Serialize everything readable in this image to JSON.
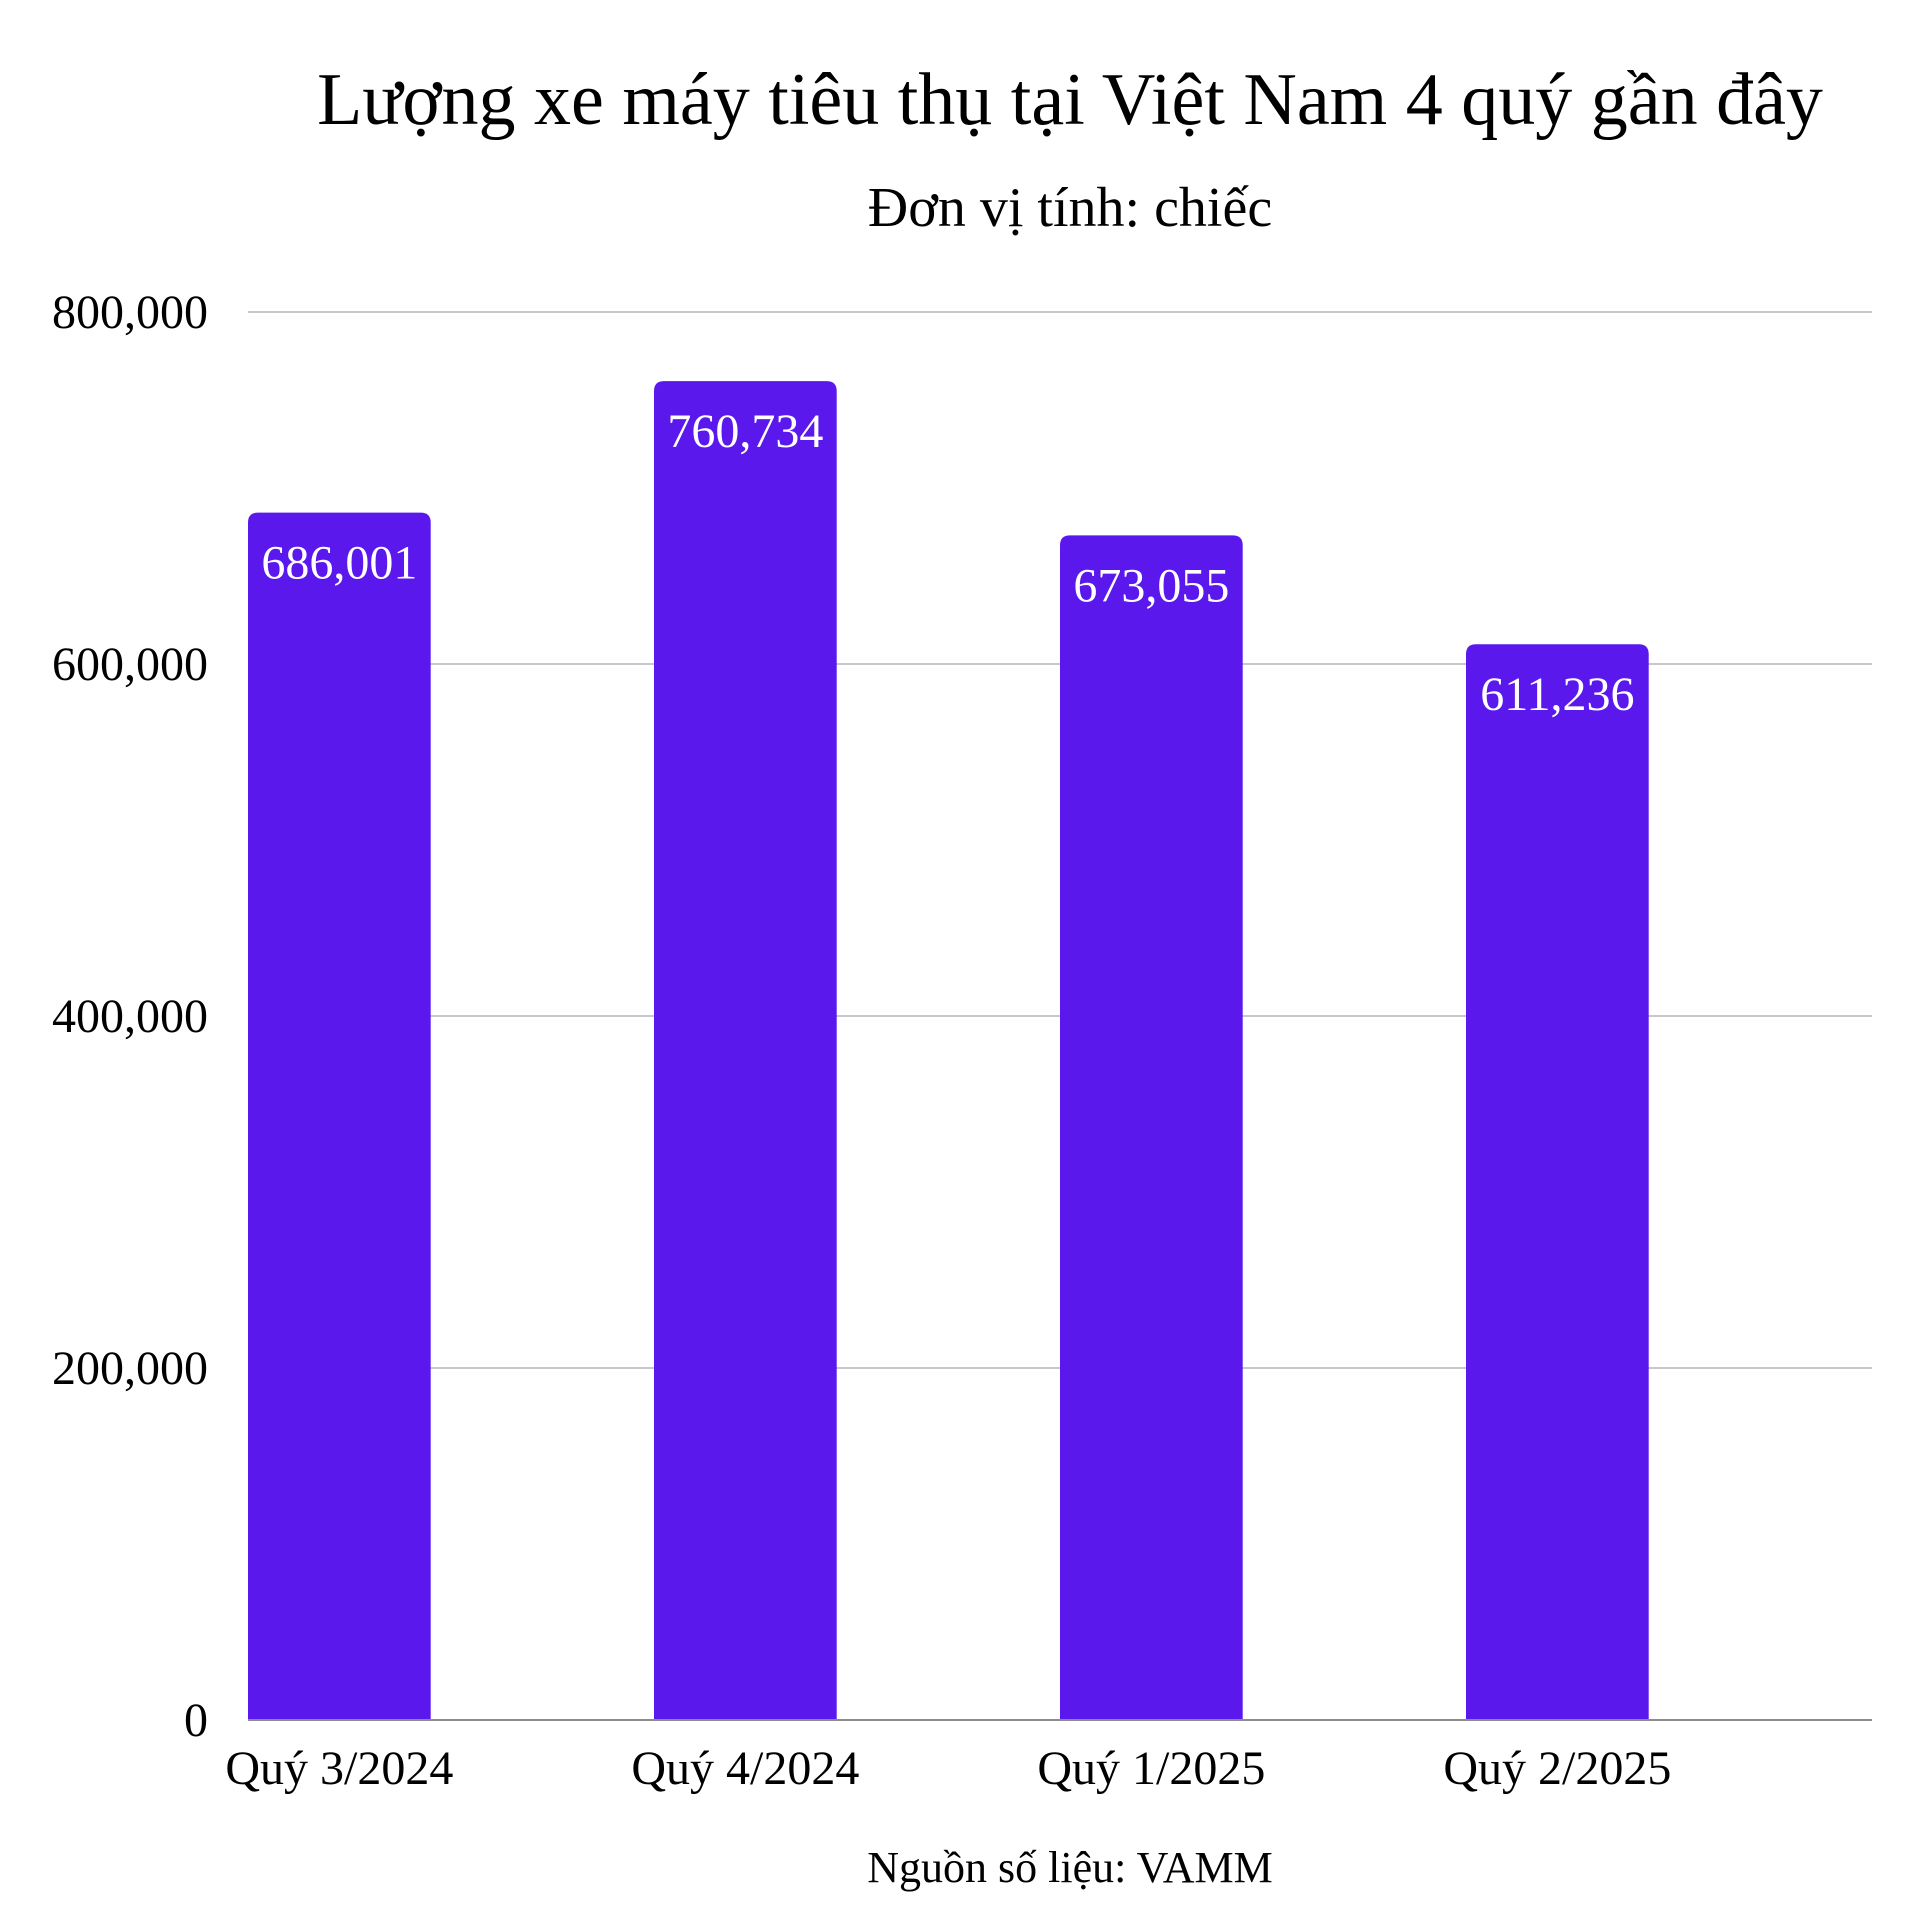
{
  "chart_data": {
    "type": "bar",
    "title": "Lượng xe máy tiêu thụ tại Việt Nam 4 quý gần đây",
    "subtitle": "Đơn vị tính: chiếc",
    "categories": [
      "Quý 3/2024",
      "Quý 4/2024",
      "Quý 1/2025",
      "Quý 2/2025"
    ],
    "series": [
      {
        "values": [
          686001,
          760734,
          673055,
          611236
        ]
      }
    ],
    "data_labels": [
      "686,001",
      "760,734",
      "673,055",
      "611,236"
    ],
    "yticks": [
      0,
      200000,
      400000,
      600000,
      800000
    ],
    "ytick_labels": [
      "0",
      "200,000",
      "400,000",
      "600,000",
      "800,000"
    ],
    "ylim": [
      0,
      800000
    ],
    "grid": true,
    "legend": "none",
    "bar_color": "#5b18ec",
    "source": "Nguồn số liệu: VAMM"
  }
}
